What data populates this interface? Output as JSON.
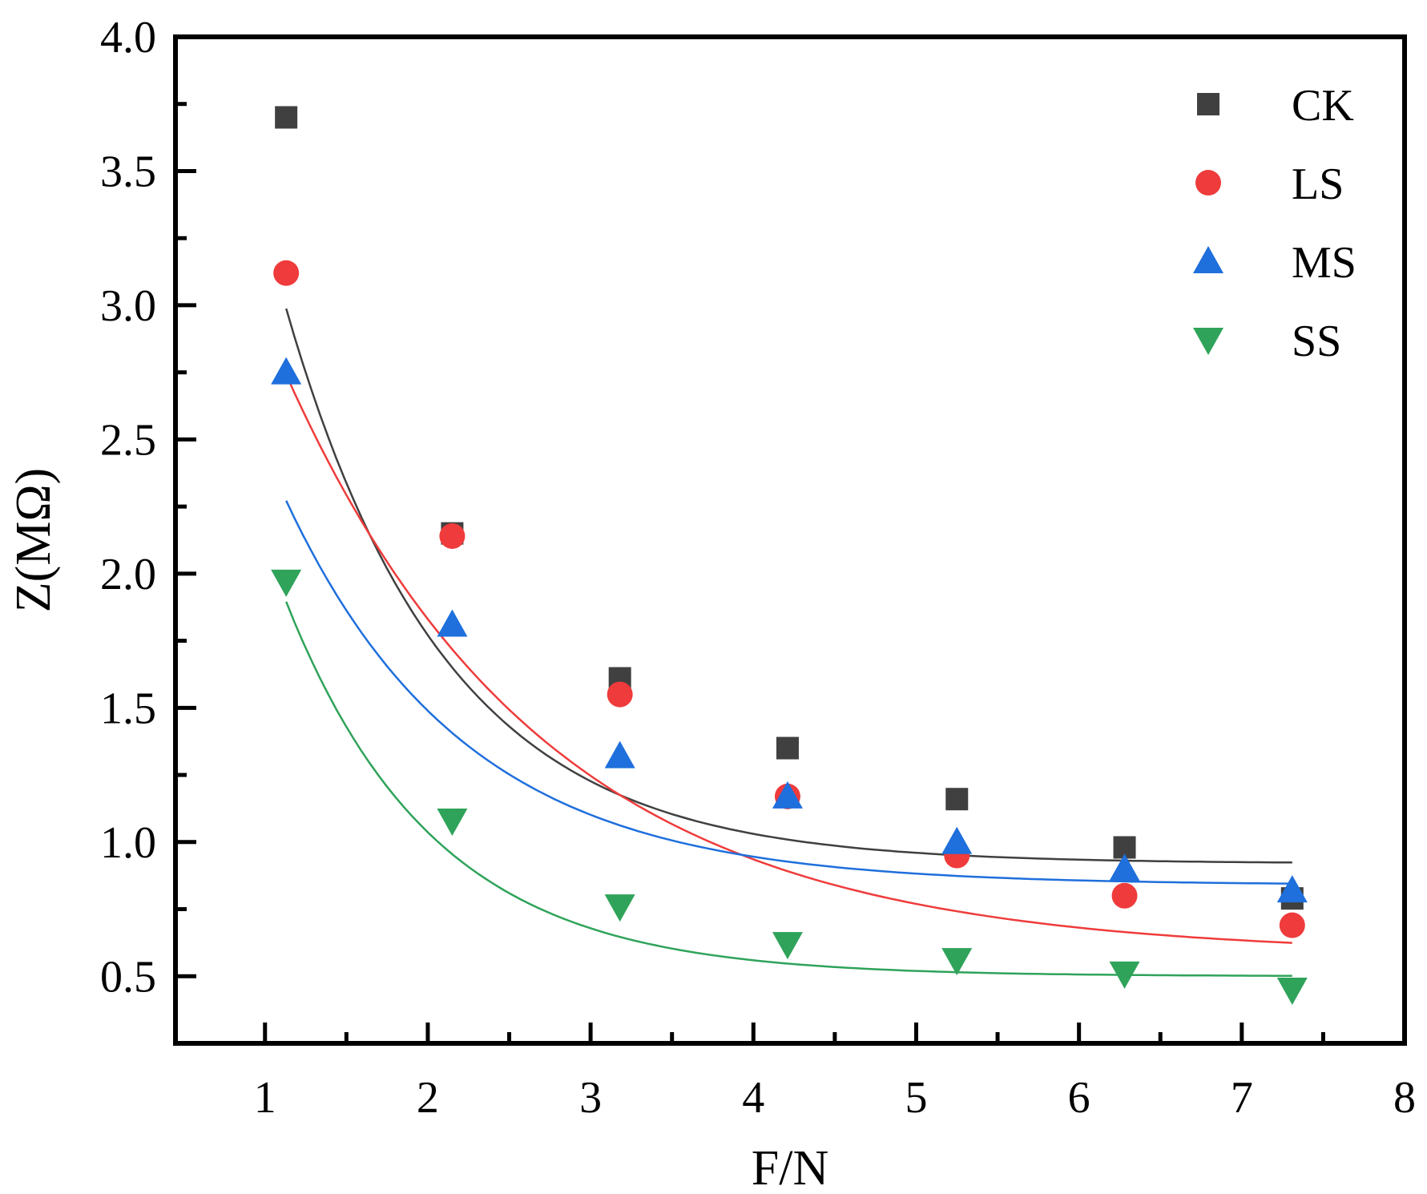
{
  "chart_data": {
    "type": "scatter",
    "title": "",
    "xlabel": "F/N",
    "ylabel": "Z(MΩ)",
    "xlim": [
      0.45,
      8
    ],
    "ylim": [
      0.25,
      4.0
    ],
    "x_ticks": [
      "1",
      "2",
      "3",
      "4",
      "5",
      "6",
      "7",
      "8"
    ],
    "x_tick_values": [
      1,
      2,
      3,
      4,
      5,
      6,
      7,
      8
    ],
    "y_ticks": [
      "0.5",
      "1.0",
      "1.5",
      "2.0",
      "2.5",
      "3.0",
      "3.5",
      "4.0"
    ],
    "y_tick_values": [
      0.5,
      1.0,
      1.5,
      2.0,
      2.5,
      3.0,
      3.5,
      4.0
    ],
    "legend_position": "top-right",
    "fit_curves": "exponential decay fits, one per series",
    "series": [
      {
        "name": "CK",
        "marker": "square",
        "color": "#404040",
        "x": [
          1.13,
          2.15,
          3.18,
          4.21,
          5.25,
          6.28,
          7.31
        ],
        "y": [
          3.7,
          2.15,
          1.61,
          1.35,
          1.16,
          0.98,
          0.79
        ],
        "fit": {
          "y0": 0.92,
          "A": 6.55,
          "t": 0.98
        }
      },
      {
        "name": "LS",
        "marker": "circle",
        "color": "#ef3b3b",
        "x": [
          1.13,
          2.15,
          3.18,
          4.21,
          5.25,
          6.28,
          7.31
        ],
        "y": [
          3.12,
          2.14,
          1.55,
          1.17,
          0.95,
          0.8,
          0.69
        ],
        "fit": {
          "y0": 0.58,
          "A": 4.4,
          "t": 1.59
        }
      },
      {
        "name": "MS",
        "marker": "triangle-up",
        "color": "#1f6fdc",
        "x": [
          1.13,
          2.15,
          3.18,
          4.21,
          5.25,
          6.28,
          7.31
        ],
        "y": [
          2.75,
          1.81,
          1.32,
          1.17,
          1.0,
          0.9,
          0.82
        ],
        "fit": {
          "y0": 0.84,
          "A": 4.0,
          "t": 1.1
        }
      },
      {
        "name": "SS",
        "marker": "triangle-down",
        "color": "#2fa35a",
        "x": [
          1.13,
          2.15,
          3.18,
          4.21,
          5.25,
          6.28,
          7.31
        ],
        "y": [
          1.97,
          1.08,
          0.76,
          0.62,
          0.56,
          0.51,
          0.45
        ],
        "fit": {
          "y0": 0.5,
          "A": 4.83,
          "t": 0.91
        }
      }
    ]
  }
}
